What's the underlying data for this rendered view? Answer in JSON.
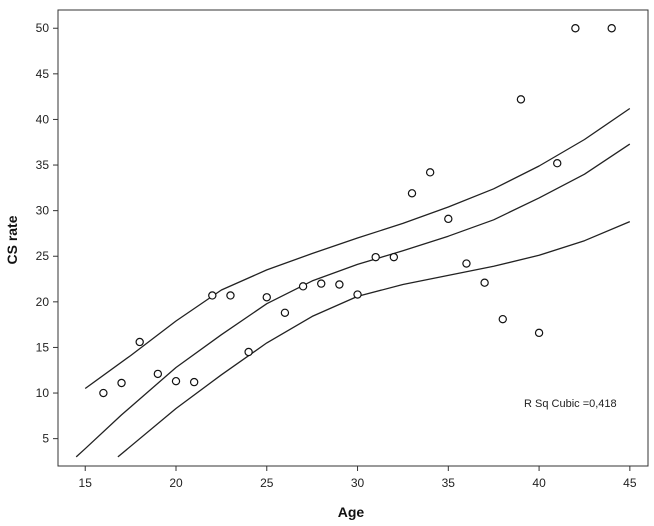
{
  "chart_data": {
    "type": "scatter",
    "xlabel": "Age",
    "ylabel": "CS rate",
    "xlim": [
      13.5,
      46
    ],
    "ylim": [
      2,
      52
    ],
    "xticks": [
      15,
      20,
      25,
      30,
      35,
      40,
      45
    ],
    "yticks": [
      5,
      10,
      15,
      20,
      25,
      30,
      35,
      40,
      45,
      50
    ],
    "grid": false,
    "legend": "none",
    "annotation": "R Sq Cubic =0,418",
    "points": {
      "x": [
        16,
        17,
        18,
        19,
        20,
        21,
        22,
        23,
        24,
        25,
        26,
        27,
        28,
        29,
        30,
        31,
        32,
        33,
        34,
        35,
        36,
        37,
        38,
        39,
        40,
        41,
        42,
        44
      ],
      "y": [
        10.0,
        11.1,
        15.6,
        12.1,
        11.3,
        11.2,
        20.7,
        20.7,
        14.5,
        20.5,
        18.8,
        21.7,
        22.0,
        21.9,
        20.8,
        24.9,
        24.9,
        31.9,
        34.2,
        29.1,
        24.2,
        22.1,
        18.1,
        42.2,
        16.6,
        35.2,
        50.0,
        50.0
      ]
    },
    "fit_curves": [
      {
        "x": [
          14.5,
          15,
          17,
          20,
          22.5,
          25,
          27.5,
          30,
          32.5,
          35,
          37.5,
          40,
          42.5,
          45
        ],
        "y": [
          3.0,
          3.9,
          7.6,
          12.8,
          16.4,
          19.8,
          22.3,
          24.1,
          25.6,
          27.2,
          29.0,
          31.4,
          34.0,
          37.3
        ]
      },
      {
        "x": [
          15,
          17.5,
          20,
          22.5,
          25,
          27.5,
          30,
          32.5,
          35,
          37.5,
          40,
          42.5,
          45
        ],
        "y": [
          10.5,
          14.1,
          17.9,
          21.3,
          23.5,
          25.3,
          27.0,
          28.6,
          30.4,
          32.4,
          34.9,
          37.8,
          41.2
        ]
      },
      {
        "x": [
          16.8,
          20,
          22.5,
          25,
          27.5,
          30,
          32.5,
          35,
          37.5,
          40,
          42.5,
          45
        ],
        "y": [
          3.0,
          8.3,
          12.0,
          15.5,
          18.4,
          20.6,
          21.9,
          22.9,
          23.9,
          25.1,
          26.7,
          28.8
        ]
      }
    ]
  }
}
